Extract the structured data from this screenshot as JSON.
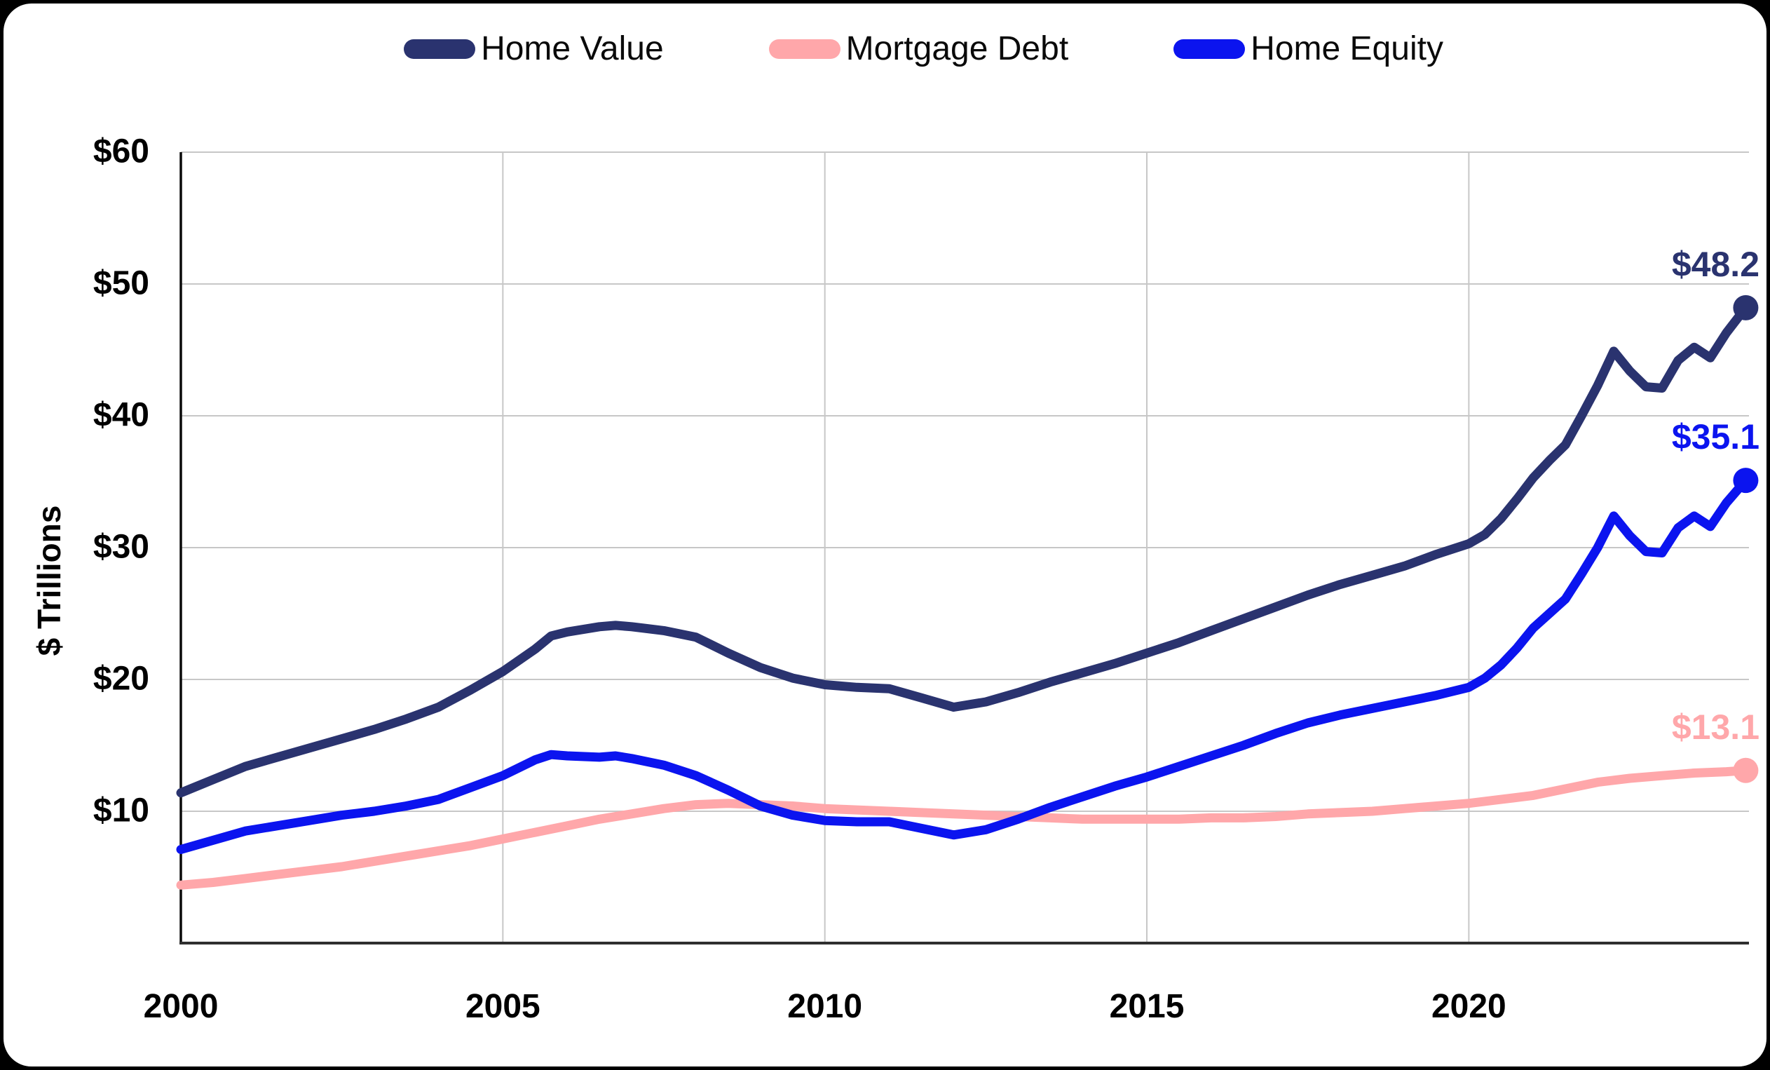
{
  "chart_data": {
    "type": "line",
    "title": "",
    "ylabel": "$ Trillions",
    "xlabel": "",
    "grid": true,
    "legend_position": "top",
    "style": {
      "background": "#ffffff",
      "frame_color": "#000000",
      "grid_color": "#c7c7c7",
      "y_axis_color": "#0a0a0a",
      "x_axis_color": "#2f2f2f",
      "line_width": 13,
      "end_dot_radius": 18
    },
    "x_axis": {
      "min": 2000,
      "max": 2024.35,
      "ticks": [
        {
          "value": 2000,
          "label": "2000"
        },
        {
          "value": 2005,
          "label": "2005"
        },
        {
          "value": 2010,
          "label": "2010"
        },
        {
          "value": 2015,
          "label": "2015"
        },
        {
          "value": 2020,
          "label": "2020"
        }
      ],
      "gridlines": [
        2005,
        2010,
        2015,
        2020
      ]
    },
    "y_axis": {
      "min": 0,
      "max": 60,
      "ticks": [
        {
          "value": 10,
          "label": "$10"
        },
        {
          "value": 20,
          "label": "$20"
        },
        {
          "value": 30,
          "label": "$30"
        },
        {
          "value": 40,
          "label": "$40"
        },
        {
          "value": 50,
          "label": "$50"
        },
        {
          "value": 60,
          "label": "$60"
        }
      ],
      "gridlines": [
        10,
        20,
        30,
        40,
        50,
        60
      ]
    },
    "series": [
      {
        "name": "Home Value",
        "color": "#2a336f",
        "end_label": "$48.2",
        "x": [
          2000,
          2000.5,
          2001,
          2001.5,
          2002,
          2002.5,
          2003,
          2003.5,
          2004,
          2004.5,
          2005,
          2005.5,
          2005.75,
          2006,
          2006.5,
          2006.75,
          2007,
          2007.5,
          2008,
          2008.5,
          2009,
          2009.5,
          2010,
          2010.5,
          2011,
          2011.5,
          2012,
          2012.5,
          2013,
          2013.5,
          2014,
          2014.5,
          2015,
          2015.5,
          2016,
          2016.5,
          2017,
          2017.5,
          2018,
          2018.5,
          2019,
          2019.5,
          2020,
          2020.25,
          2020.5,
          2020.75,
          2021,
          2021.25,
          2021.5,
          2021.75,
          2022,
          2022.25,
          2022.5,
          2022.75,
          2023,
          2023.25,
          2023.5,
          2023.75,
          2024,
          2024.3
        ],
        "values": [
          11.4,
          12.4,
          13.4,
          14.1,
          14.8,
          15.5,
          16.2,
          17.0,
          17.9,
          19.2,
          20.6,
          22.3,
          23.3,
          23.6,
          24.0,
          24.1,
          24.0,
          23.7,
          23.2,
          22.0,
          20.9,
          20.1,
          19.6,
          19.4,
          19.3,
          18.6,
          17.9,
          18.3,
          19.0,
          19.8,
          20.5,
          21.2,
          22.0,
          22.8,
          23.7,
          24.6,
          25.5,
          26.4,
          27.2,
          27.9,
          28.6,
          29.5,
          30.3,
          31.0,
          32.2,
          33.7,
          35.3,
          36.6,
          37.8,
          40.0,
          42.3,
          44.9,
          43.4,
          42.2,
          42.1,
          44.2,
          45.2,
          44.4,
          46.3,
          48.2
        ]
      },
      {
        "name": "Mortgage Debt",
        "color": "#ffa7aa",
        "end_label": "$13.1",
        "x": [
          2000,
          2000.5,
          2001,
          2001.5,
          2002,
          2002.5,
          2003,
          2003.5,
          2004,
          2004.5,
          2005,
          2005.5,
          2006,
          2006.5,
          2007,
          2007.5,
          2008,
          2008.5,
          2009,
          2009.5,
          2010,
          2010.5,
          2011,
          2011.5,
          2012,
          2012.5,
          2013,
          2013.5,
          2014,
          2014.5,
          2015,
          2015.5,
          2016,
          2016.5,
          2017,
          2017.5,
          2018,
          2018.5,
          2019,
          2019.5,
          2020,
          2020.5,
          2021,
          2021.5,
          2022,
          2022.5,
          2023,
          2023.5,
          2024,
          2024.3
        ],
        "values": [
          4.4,
          4.6,
          4.9,
          5.2,
          5.5,
          5.8,
          6.2,
          6.6,
          7.0,
          7.4,
          7.9,
          8.4,
          8.9,
          9.4,
          9.8,
          10.2,
          10.5,
          10.6,
          10.5,
          10.4,
          10.2,
          10.1,
          10.0,
          9.9,
          9.8,
          9.7,
          9.6,
          9.5,
          9.4,
          9.4,
          9.4,
          9.4,
          9.5,
          9.5,
          9.6,
          9.8,
          9.9,
          10.0,
          10.2,
          10.4,
          10.6,
          10.9,
          11.2,
          11.7,
          12.2,
          12.5,
          12.7,
          12.9,
          13.0,
          13.1
        ]
      },
      {
        "name": "Home Equity",
        "color": "#0b14ef",
        "end_label": "$35.1",
        "x": [
          2000,
          2000.5,
          2001,
          2001.5,
          2002,
          2002.5,
          2003,
          2003.5,
          2004,
          2004.5,
          2005,
          2005.5,
          2005.75,
          2006,
          2006.5,
          2006.75,
          2007,
          2007.5,
          2008,
          2008.5,
          2009,
          2009.5,
          2010,
          2010.5,
          2011,
          2011.5,
          2012,
          2012.5,
          2013,
          2013.5,
          2014,
          2014.5,
          2015,
          2015.5,
          2016,
          2016.5,
          2017,
          2017.5,
          2018,
          2018.5,
          2019,
          2019.5,
          2020,
          2020.25,
          2020.5,
          2020.75,
          2021,
          2021.25,
          2021.5,
          2021.75,
          2022,
          2022.25,
          2022.5,
          2022.75,
          2023,
          2023.25,
          2023.5,
          2023.75,
          2024,
          2024.3
        ],
        "values": [
          7.1,
          7.8,
          8.5,
          8.9,
          9.3,
          9.7,
          10.0,
          10.4,
          10.9,
          11.8,
          12.7,
          13.9,
          14.3,
          14.2,
          14.1,
          14.2,
          14.0,
          13.5,
          12.7,
          11.6,
          10.4,
          9.7,
          9.3,
          9.2,
          9.2,
          8.7,
          8.2,
          8.6,
          9.4,
          10.3,
          11.1,
          11.9,
          12.6,
          13.4,
          14.2,
          15.0,
          15.9,
          16.7,
          17.3,
          17.8,
          18.3,
          18.8,
          19.4,
          20.1,
          21.1,
          22.4,
          23.9,
          25.0,
          26.1,
          28.0,
          30.0,
          32.4,
          30.9,
          29.7,
          29.6,
          31.5,
          32.4,
          31.6,
          33.4,
          35.1
        ]
      }
    ]
  }
}
